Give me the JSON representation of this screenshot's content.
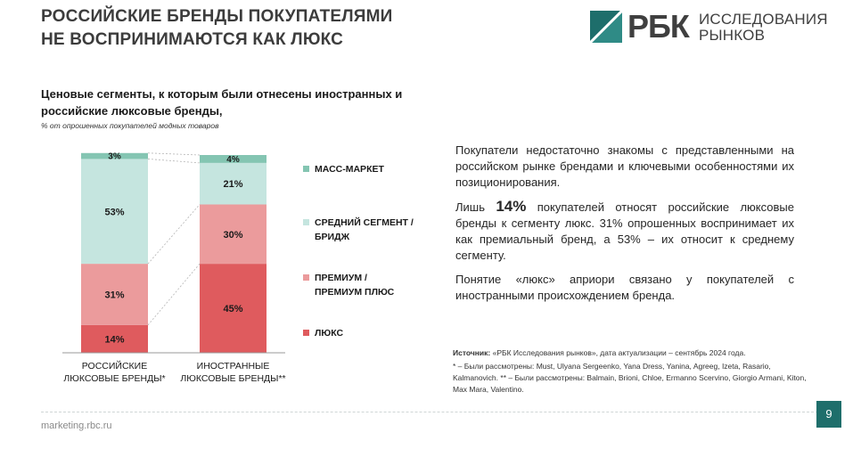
{
  "title_lines": [
    "РОССИЙСКИЕ БРЕНДЫ ПОКУПАТЕЛЯМИ",
    "НЕ ВОСПРИНИМАЮТСЯ КАК ЛЮКС"
  ],
  "logo": {
    "brand": "РБК",
    "sub": [
      "ИССЛЕДОВАНИЯ",
      "РЫНКОВ"
    ]
  },
  "colors": {
    "mass_market": "#84c5b2",
    "middle": "#c5e5df",
    "premium": "#eb9b9c",
    "luxury": "#df5b5e",
    "accent": "#1e6e6b"
  },
  "chart_data": {
    "type": "bar",
    "stacked": true,
    "title": "Ценовые сегменты, к которым были отнесены иностранных и российские люксовые бренды,",
    "subtitle": "% от опрошенных покупателей модных товаров",
    "unit": "%",
    "ylim": [
      0,
      100
    ],
    "categories": [
      [
        "РОССИЙСКИЕ",
        "ЛЮКСОВЫЕ БРЕНДЫ*"
      ],
      [
        "ИНОСТРАННЫЕ",
        "ЛЮКСОВЫЕ БРЕНДЫ**"
      ]
    ],
    "series": [
      {
        "name": "ЛЮКС",
        "color_key": "luxury",
        "values": [
          14,
          45
        ],
        "labels": [
          "14%",
          "45%"
        ]
      },
      {
        "name": "ПРЕМИУМ / ПРЕМИУМ ПЛЮС",
        "color_key": "premium",
        "values": [
          31,
          30
        ],
        "labels": [
          "31%",
          "30%"
        ]
      },
      {
        "name": "СРЕДНИЙ СЕГМЕНТ / БРИДЖ",
        "color_key": "middle",
        "values": [
          53,
          21
        ],
        "labels": [
          "53%",
          "21%"
        ]
      },
      {
        "name": "МАСС-МАРКЕТ",
        "color_key": "mass_market",
        "values": [
          3,
          4
        ],
        "labels": [
          "3%",
          "4%"
        ]
      }
    ],
    "legend": [
      {
        "lines": [
          "МАСС-МАРКЕТ"
        ],
        "color_key": "mass_market"
      },
      {
        "lines": [
          "СРЕДНИЙ СЕГМЕНТ /",
          "БРИДЖ"
        ],
        "color_key": "middle"
      },
      {
        "lines": [
          "ПРЕМИУМ /",
          "ПРЕМИУМ ПЛЮС"
        ],
        "color_key": "premium"
      },
      {
        "lines": [
          "ЛЮКС"
        ],
        "color_key": "luxury"
      }
    ]
  },
  "text": {
    "p1": "Покупатели недостаточно знакомы с представленными на российском рынке брендами и ключевыми особенностями их позиционирования.",
    "p2_prefix": "Лишь ",
    "p2_highlight": "14%",
    "p2_suffix": " покупателей относят российские люксовые бренды к сегменту люкс. 31% опрошенных воспринимает их как премиальный бренд, а 53% – их относит к среднему сегменту.",
    "p3": "Понятие «люкс» априори связано у покупателей с иностранными происхождением бренда."
  },
  "source": {
    "label": "Источник:",
    "text": " «РБК Исследования рынков», дата актуализации – сентябрь 2024 года.",
    "note1": "* – Были рассмотрены: Must, Ulyana Sergeenko, Yana Dress, Yanina, Agreeg, Izeta, Rasario, Kalmanovich. ** – Были рассмотрены: Balmain, Brioni, Chloe, Ermanno Scervino, Giorgio Armani, Kiton, Max Mara, Valentino."
  },
  "footer": {
    "url": "marketing.rbc.ru",
    "page": "9"
  }
}
